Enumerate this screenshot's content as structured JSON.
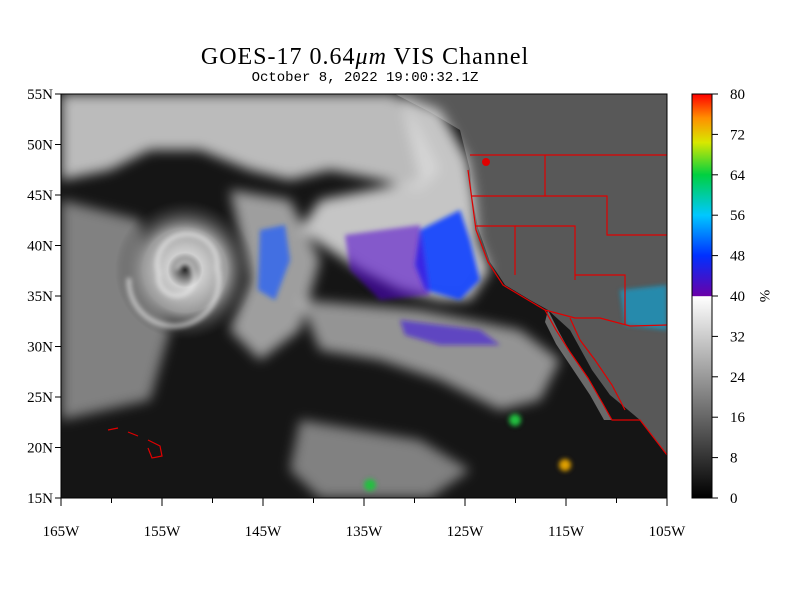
{
  "map": {
    "title_prefix": "GOES-17  0.64",
    "title_unit": "μm",
    "title_suffix": " VIS Channel",
    "subtitle": "October  8,  2022 19:00:32.1Z",
    "lat_labels": [
      "55N",
      "50N",
      "45N",
      "40N",
      "35N",
      "30N",
      "25N",
      "20N",
      "15N"
    ],
    "lat_values": [
      55,
      50,
      45,
      40,
      35,
      30,
      25,
      20,
      15
    ],
    "lon_labels": [
      "165W",
      "155W",
      "145W",
      "135W",
      "125W",
      "115W",
      "105W"
    ],
    "lon_values": [
      -165,
      -155,
      -145,
      -135,
      -125,
      -115,
      -105
    ],
    "lat_range": [
      15,
      55
    ],
    "lon_range": [
      -165,
      -105
    ]
  },
  "colorbar": {
    "unit": "%",
    "ticks": [
      "80",
      "72",
      "64",
      "56",
      "48",
      "40",
      "32",
      "24",
      "16",
      "8",
      "0"
    ],
    "tick_values": [
      80,
      72,
      64,
      56,
      48,
      40,
      32,
      24,
      16,
      8,
      0
    ],
    "range": [
      0,
      80
    ]
  },
  "colors": {
    "border": "#e00000",
    "cloud": "#ececec",
    "ocean": "#151515",
    "land": "#5a5a5a"
  }
}
